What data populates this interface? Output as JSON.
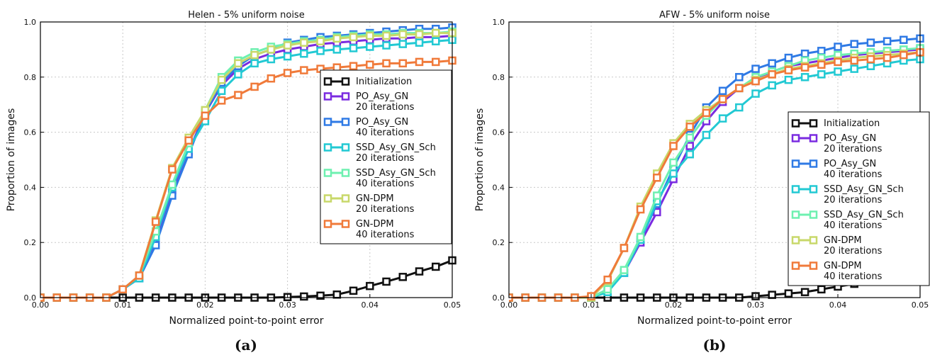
{
  "chart_data": [
    {
      "type": "line",
      "panel_label": "(a)",
      "title": "Helen - 5% uniform noise",
      "xlabel": "Normalized point-to-point error",
      "ylabel": "Proportion of images",
      "xlim": [
        0,
        0.05
      ],
      "ylim": [
        0,
        1.0
      ],
      "x_ticks": [
        "0.00",
        "0.01",
        "0.02",
        "0.03",
        "0.04",
        "0.05"
      ],
      "y_ticks": [
        "0.0",
        "0.2",
        "0.4",
        "0.6",
        "0.8",
        "1.0"
      ],
      "grid": true,
      "legend_position": "center-right",
      "x": [
        0,
        0.002,
        0.004,
        0.006,
        0.008,
        0.01,
        0.012,
        0.014,
        0.016,
        0.018,
        0.02,
        0.022,
        0.024,
        0.026,
        0.028,
        0.03,
        0.032,
        0.034,
        0.036,
        0.038,
        0.04,
        0.042,
        0.044,
        0.046,
        0.048,
        0.05
      ],
      "series": [
        {
          "name": "Initialization",
          "color": "#111111",
          "values": [
            0,
            0,
            0,
            0,
            0,
            0,
            0,
            0,
            0,
            0,
            0,
            0,
            0,
            0,
            0,
            0.002,
            0.004,
            0.007,
            0.011,
            0.025,
            0.042,
            0.058,
            0.075,
            0.095,
            0.112,
            0.135
          ]
        },
        {
          "name": "PO_Asy_GN\n20 iterations",
          "color": "#7a2be0",
          "values": [
            0,
            0,
            0,
            0,
            0,
            0.03,
            0.07,
            0.21,
            0.39,
            0.53,
            0.67,
            0.77,
            0.83,
            0.865,
            0.885,
            0.9,
            0.91,
            0.92,
            0.925,
            0.93,
            0.935,
            0.94,
            0.94,
            0.945,
            0.945,
            0.95
          ]
        },
        {
          "name": "PO_Asy_GN\n40 iterations",
          "color": "#2f7ae5",
          "values": [
            0,
            0,
            0,
            0,
            0,
            0.03,
            0.07,
            0.19,
            0.37,
            0.52,
            0.67,
            0.78,
            0.84,
            0.88,
            0.9,
            0.925,
            0.935,
            0.945,
            0.95,
            0.955,
            0.96,
            0.965,
            0.97,
            0.975,
            0.975,
            0.98
          ]
        },
        {
          "name": "SSD_Asy_GN_Sch\n20 iterations",
          "color": "#22c9d3",
          "values": [
            0,
            0,
            0,
            0,
            0,
            0.03,
            0.07,
            0.22,
            0.4,
            0.54,
            0.64,
            0.75,
            0.81,
            0.85,
            0.865,
            0.875,
            0.885,
            0.895,
            0.9,
            0.905,
            0.91,
            0.915,
            0.92,
            0.925,
            0.93,
            0.935
          ]
        },
        {
          "name": "SSD_Asy_GN_Sch\n40 iterations",
          "color": "#6ef0b0",
          "values": [
            0,
            0,
            0,
            0,
            0,
            0.03,
            0.08,
            0.24,
            0.41,
            0.56,
            0.68,
            0.8,
            0.86,
            0.89,
            0.91,
            0.92,
            0.93,
            0.935,
            0.945,
            0.95,
            0.955,
            0.955,
            0.96,
            0.96,
            0.96,
            0.965
          ]
        },
        {
          "name": "GN-DPM\n20 iterations",
          "color": "#c8d86a",
          "values": [
            0,
            0,
            0,
            0,
            0,
            0.03,
            0.08,
            0.28,
            0.47,
            0.58,
            0.68,
            0.79,
            0.85,
            0.88,
            0.9,
            0.915,
            0.925,
            0.93,
            0.94,
            0.945,
            0.95,
            0.95,
            0.955,
            0.955,
            0.96,
            0.96
          ]
        },
        {
          "name": "GN-DPM\n40 iterations",
          "color": "#f07a3a",
          "values": [
            0,
            0,
            0,
            0,
            0,
            0.03,
            0.08,
            0.275,
            0.465,
            0.57,
            0.66,
            0.715,
            0.735,
            0.765,
            0.795,
            0.815,
            0.825,
            0.83,
            0.835,
            0.84,
            0.845,
            0.85,
            0.85,
            0.855,
            0.855,
            0.86
          ]
        }
      ]
    },
    {
      "type": "line",
      "panel_label": "(b)",
      "title": "AFW - 5% uniform noise",
      "xlabel": "Normalized point-to-point error",
      "ylabel": "Proportion of images",
      "xlim": [
        0,
        0.05
      ],
      "ylim": [
        0,
        1.0
      ],
      "x_ticks": [
        "0.00",
        "0.01",
        "0.02",
        "0.03",
        "0.04",
        "0.05"
      ],
      "y_ticks": [
        "0.0",
        "0.2",
        "0.4",
        "0.6",
        "0.8",
        "1.0"
      ],
      "grid": true,
      "legend_position": "lower-right",
      "x": [
        0,
        0.002,
        0.004,
        0.006,
        0.008,
        0.01,
        0.012,
        0.014,
        0.016,
        0.018,
        0.02,
        0.022,
        0.024,
        0.026,
        0.028,
        0.03,
        0.032,
        0.034,
        0.036,
        0.038,
        0.04,
        0.042,
        0.044,
        0.046,
        0.048,
        0.05
      ],
      "series": [
        {
          "name": "Initialization",
          "color": "#111111",
          "values": [
            0,
            0,
            0,
            0,
            0,
            0,
            0,
            0,
            0,
            0,
            0,
            0,
            0,
            0,
            0,
            0.005,
            0.01,
            0.015,
            0.02,
            0.03,
            0.04,
            0.05,
            0.065,
            0.08,
            0.1,
            0.115
          ]
        },
        {
          "name": "PO_Asy_GN\n20 iterations",
          "color": "#7a2be0",
          "values": [
            0,
            0,
            0,
            0,
            0,
            0,
            0.03,
            0.09,
            0.2,
            0.31,
            0.43,
            0.55,
            0.64,
            0.71,
            0.76,
            0.79,
            0.82,
            0.84,
            0.85,
            0.86,
            0.87,
            0.88,
            0.885,
            0.89,
            0.895,
            0.9
          ]
        },
        {
          "name": "PO_Asy_GN\n40 iterations",
          "color": "#2f7ae5",
          "values": [
            0,
            0,
            0,
            0,
            0,
            0,
            0.03,
            0.09,
            0.21,
            0.34,
            0.47,
            0.59,
            0.69,
            0.75,
            0.8,
            0.83,
            0.85,
            0.87,
            0.885,
            0.895,
            0.91,
            0.92,
            0.925,
            0.93,
            0.935,
            0.94
          ]
        },
        {
          "name": "SSD_Asy_GN_Sch\n20 iterations",
          "color": "#22c9d3",
          "values": [
            0,
            0,
            0,
            0,
            0,
            0,
            0.02,
            0.09,
            0.21,
            0.35,
            0.45,
            0.52,
            0.59,
            0.65,
            0.69,
            0.74,
            0.77,
            0.79,
            0.8,
            0.81,
            0.82,
            0.83,
            0.84,
            0.85,
            0.86,
            0.865
          ]
        },
        {
          "name": "SSD_Asy_GN_Sch\n40 iterations",
          "color": "#6ef0b0",
          "values": [
            0,
            0,
            0,
            0,
            0,
            0,
            0.03,
            0.1,
            0.22,
            0.37,
            0.49,
            0.58,
            0.66,
            0.72,
            0.76,
            0.8,
            0.82,
            0.84,
            0.86,
            0.87,
            0.88,
            0.885,
            0.89,
            0.895,
            0.9,
            0.905
          ]
        },
        {
          "name": "GN-DPM\n20 iterations",
          "color": "#c8d86a",
          "values": [
            0,
            0,
            0,
            0,
            0,
            0,
            0.06,
            0.18,
            0.33,
            0.45,
            0.56,
            0.63,
            0.68,
            0.72,
            0.76,
            0.79,
            0.81,
            0.83,
            0.84,
            0.85,
            0.86,
            0.87,
            0.875,
            0.88,
            0.885,
            0.89
          ]
        },
        {
          "name": "GN-DPM\n40 iterations",
          "color": "#f07a3a",
          "values": [
            0,
            0,
            0,
            0,
            0,
            0.005,
            0.065,
            0.18,
            0.32,
            0.435,
            0.55,
            0.62,
            0.67,
            0.72,
            0.76,
            0.785,
            0.81,
            0.825,
            0.835,
            0.845,
            0.855,
            0.86,
            0.865,
            0.87,
            0.88,
            0.89
          ]
        }
      ]
    }
  ]
}
